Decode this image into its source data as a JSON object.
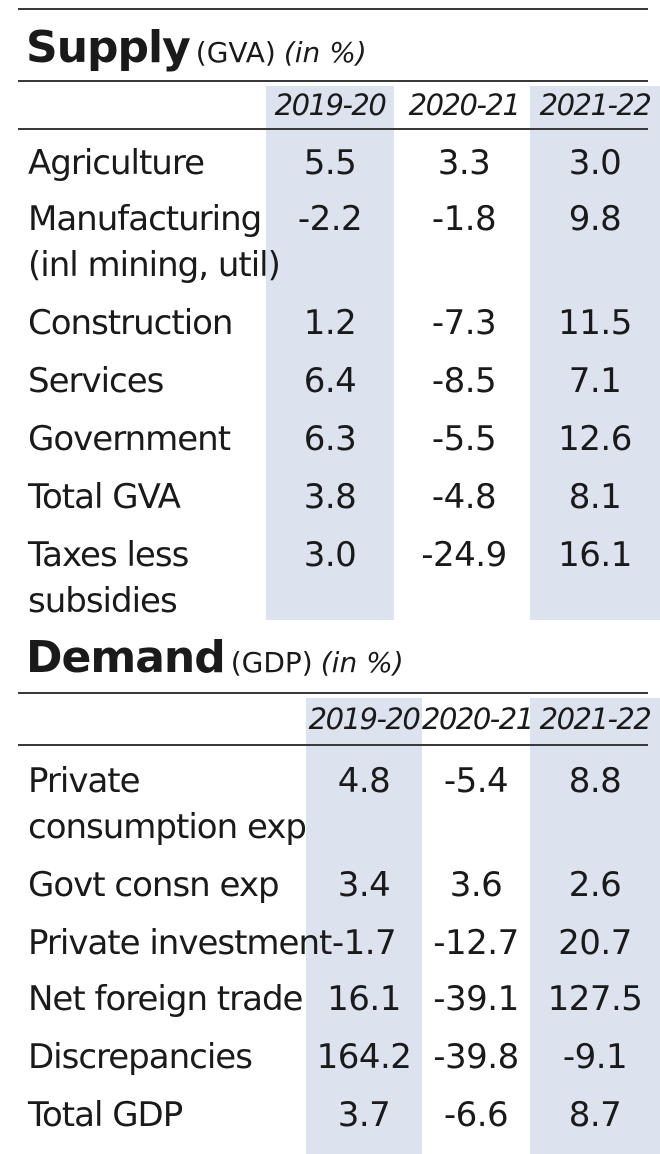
{
  "supply": {
    "title": "Supply",
    "subtitle": "(GVA)",
    "unit": "(in %)",
    "years": [
      "2019-20",
      "2020-21",
      "2021-22"
    ],
    "rows": [
      {
        "label_lines": [
          "Agriculture"
        ],
        "values": [
          "5.5",
          "3.3",
          "3.0"
        ]
      },
      {
        "label_lines": [
          "Manufacturing",
          "(inl mining, util)"
        ],
        "values": [
          "-2.2",
          "-1.8",
          "9.8"
        ]
      },
      {
        "label_lines": [
          "Construction"
        ],
        "values": [
          "1.2",
          "-7.3",
          "11.5"
        ]
      },
      {
        "label_lines": [
          "Services"
        ],
        "values": [
          "6.4",
          "-8.5",
          "7.1"
        ]
      },
      {
        "label_lines": [
          "Government"
        ],
        "values": [
          "6.3",
          "-5.5",
          "12.6"
        ]
      },
      {
        "label_lines": [
          "Total GVA"
        ],
        "values": [
          "3.8",
          "-4.8",
          "8.1"
        ]
      },
      {
        "label_lines": [
          "Taxes less",
          "subsidies"
        ],
        "values": [
          "3.0",
          "-24.9",
          "16.1"
        ]
      }
    ]
  },
  "demand": {
    "title": "Demand",
    "subtitle": "(GDP)",
    "unit": "(in %)",
    "years": [
      "2019-20",
      "2020-21",
      "2021-22"
    ],
    "rows": [
      {
        "label_lines": [
          "Private",
          "consumption exp"
        ],
        "values": [
          "4.8",
          "-5.4",
          "8.8"
        ]
      },
      {
        "label_lines": [
          "Govt consn exp"
        ],
        "values": [
          "3.4",
          "3.6",
          "2.6"
        ]
      },
      {
        "label_lines": [
          "Private investment"
        ],
        "values": [
          "-1.7",
          "-12.7",
          "20.7"
        ]
      },
      {
        "label_lines": [
          "Net foreign trade"
        ],
        "values": [
          "16.1",
          "-39.1",
          "127.5"
        ]
      },
      {
        "label_lines": [
          "Discrepancies"
        ],
        "values": [
          "164.2",
          "-39.8",
          "-9.1"
        ]
      },
      {
        "label_lines": [
          "Total GDP"
        ],
        "values": [
          "3.7",
          "-6.6",
          "8.7"
        ]
      }
    ]
  },
  "colors": {
    "shade": "#dde3ee",
    "text": "#1a1a1a",
    "rule": "#3a3a3a"
  }
}
